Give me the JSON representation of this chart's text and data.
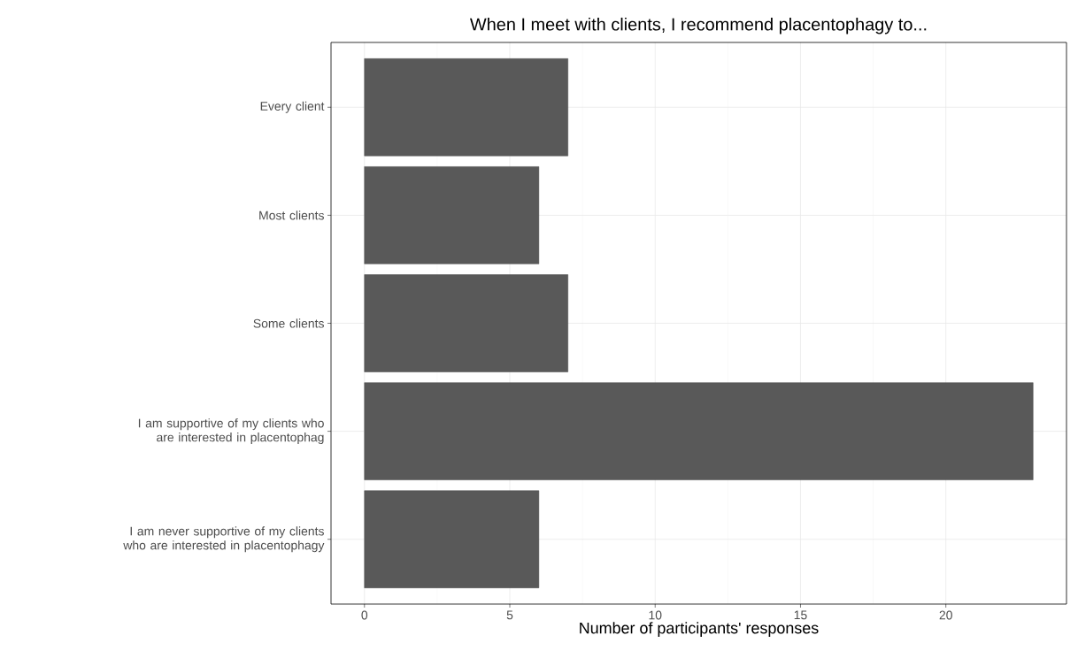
{
  "chart_data": {
    "type": "bar",
    "orientation": "horizontal",
    "title": "When I meet with clients, I recommend placentophagy to...",
    "xlabel": "Number of participants' responses",
    "categories": [
      "Every client",
      "Most clients",
      "Some clients",
      "I am supportive of my clients who are interested in placentophag",
      "I am never supportive of my clients who are interested in placentophagy"
    ],
    "values": [
      7,
      6,
      7,
      23,
      6
    ],
    "color": "#595959",
    "xlim": [
      -1.15,
      24.15
    ],
    "xticks": [
      0,
      5,
      10,
      15,
      20
    ],
    "grid": true
  }
}
